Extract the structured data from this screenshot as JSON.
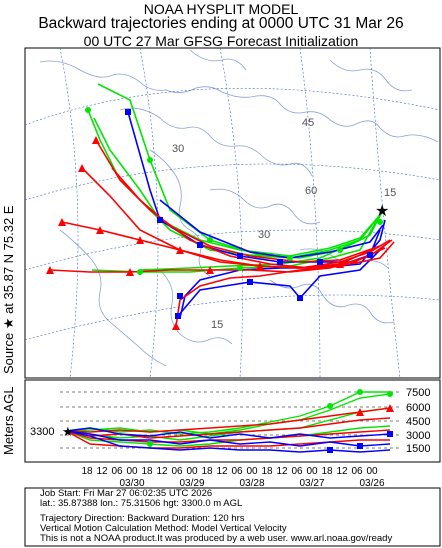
{
  "header": {
    "line1": "NOAA HYSPLIT MODEL",
    "line2": "Backward trajectories ending at 0000 UTC 31 Mar 26",
    "line3": "00 UTC 27 Mar    GFSG  Forecast Initialization"
  },
  "map": {
    "source_label": "Source ★ at   35.87 N   75.32 E",
    "source_marker": "★",
    "lat_labels": [
      "30",
      "45",
      "60",
      "30",
      "15",
      "15",
      "30",
      "15"
    ],
    "colors": {
      "red": "#ff0000",
      "blue": "#0000ff",
      "green": "#00e600",
      "lines": "#5a7acc"
    }
  },
  "vertical_panel": {
    "ylabel": "Meters AGL",
    "start_height": "3300",
    "height_ticks": [
      "7500",
      "6000",
      "4500",
      "3000",
      "1500"
    ],
    "time_ticks": [
      "18",
      "12",
      "06",
      "00",
      "18",
      "12",
      "06",
      "00",
      "18",
      "12",
      "06",
      "00",
      "18",
      "12",
      "06",
      "00",
      "18",
      "12",
      "06",
      "00"
    ],
    "date_ticks": [
      "03/30",
      "03/29",
      "03/28",
      "03/27",
      "03/26"
    ]
  },
  "footer": {
    "line1": "Job Start: Fri Mar 27 06:02:35 UTC 2026",
    "line2": "lat.: 35.87388   lon.: 75.31506   hgt: 3300.0 m AGL",
    "line3": "Trajectory Direction: Backward       Duration: 120 hrs",
    "line4": "Vertical Motion Calculation Method: Model Vertical Velocity",
    "line5": "This is not a NOAA product.It was produced by a web user. www.arl.noaa.gov/ready"
  }
}
